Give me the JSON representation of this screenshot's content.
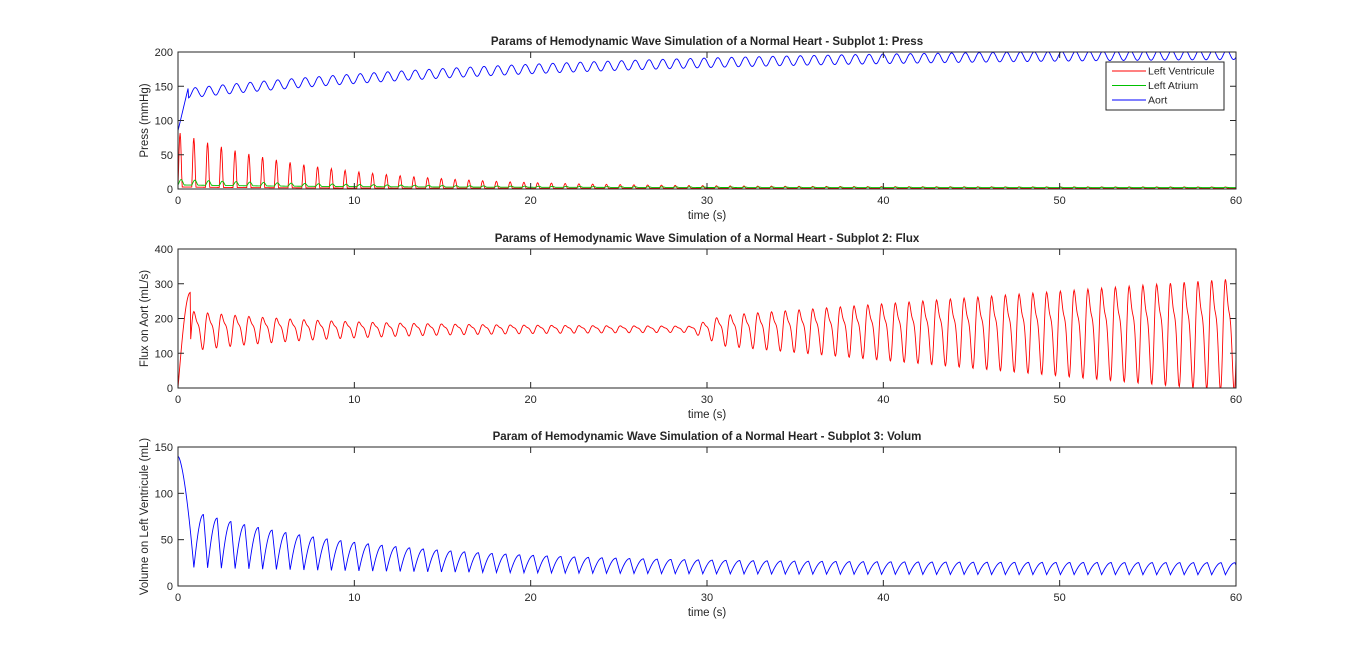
{
  "figure": {
    "background": "#ffffff"
  },
  "chart_data": [
    {
      "type": "line",
      "title": "Params of Hemodynamic Wave Simulation of a Normal Heart - Subplot 1: Press",
      "xlabel": "time (s)",
      "ylabel": "Press (mmHg)",
      "xlim": [
        0,
        60
      ],
      "ylim": [
        0,
        200
      ],
      "xticks": [
        0,
        10,
        20,
        30,
        40,
        50,
        60
      ],
      "yticks": [
        0,
        50,
        100,
        150,
        200
      ],
      "grid": false,
      "legend": {
        "placement": "top-right",
        "entries": [
          "Left Ventricule",
          "Left Atrium",
          "Aort"
        ]
      },
      "series": [
        {
          "name": "Left Ventricule",
          "color": "#ff0000",
          "model": "pulse",
          "period_s": 0.78,
          "baseline_start": 3,
          "baseline_end": 1,
          "baseline_tau": 6,
          "amplitude_start": 80,
          "amplitude_end": 2,
          "amplitude_tau": 8,
          "pulse_width_fraction": 0.3
        },
        {
          "name": "Left Atrium",
          "color": "#00c000",
          "model": "pulse",
          "period_s": 0.78,
          "baseline_start": 6,
          "baseline_end": 2,
          "baseline_tau": 10,
          "amplitude_start": 8,
          "amplitude_end": 0.5,
          "amplitude_tau": 10,
          "pulse_width_fraction": 0.45
        },
        {
          "name": "Aort",
          "color": "#0000ff",
          "model": "oscillating_rise",
          "period_s": 0.78,
          "start_value": 85,
          "initial_peak": 150,
          "mean_start": 140,
          "mean_end": 200,
          "mean_tau": 22,
          "ripple_amplitude": 7
        }
      ]
    },
    {
      "type": "line",
      "title": "Params of Hemodynamic Wave Simulation of a Normal Heart - Subplot 2: Flux",
      "xlabel": "time (s)",
      "ylabel": "Flux on Aort (mL/s)",
      "xlim": [
        0,
        60
      ],
      "ylim": [
        0,
        400
      ],
      "xticks": [
        0,
        10,
        20,
        30,
        40,
        50,
        60
      ],
      "yticks": [
        0,
        100,
        200,
        300,
        400
      ],
      "grid": false,
      "series": [
        {
          "color": "#ff0000",
          "model": "damped_then_growing",
          "period_s": 0.78,
          "start_value": 0,
          "initial_peak": 275,
          "mean": 170,
          "ripple_start": 60,
          "ripple_min": 8,
          "min_at_s": 29,
          "growth_end": 140
        }
      ]
    },
    {
      "type": "line",
      "title": "Param of Hemodynamic Wave Simulation of a Normal Heart - Subplot 3: Volum",
      "xlabel": "time (s)",
      "ylabel": "Volume on Left Ventricule (mL)",
      "xlim": [
        0,
        60
      ],
      "ylim": [
        0,
        150
      ],
      "xticks": [
        0,
        10,
        20,
        30,
        40,
        50,
        60
      ],
      "yticks": [
        0,
        50,
        100,
        150
      ],
      "grid": false,
      "series": [
        {
          "color": "#0000ff",
          "model": "sawtooth_decay",
          "period_s": 0.78,
          "start_value": 140,
          "first_min_s": 0.9,
          "first_min_value": 20,
          "max_start": 80,
          "max_end": 25,
          "max_tau": 10,
          "min_start": 20,
          "min_end": 12,
          "min_tau": 15
        }
      ]
    }
  ]
}
